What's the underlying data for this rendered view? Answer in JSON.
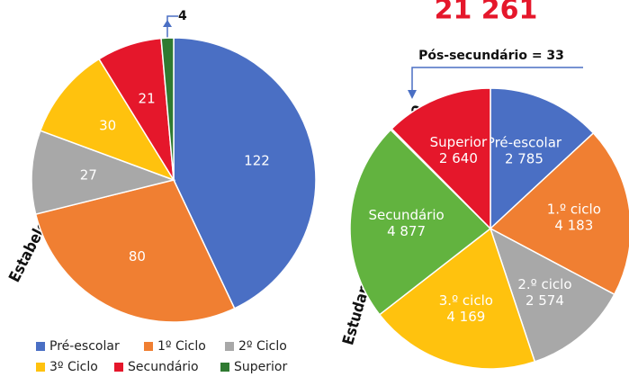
{
  "chart_data": [
    {
      "type": "pie",
      "title": "Estabelecimentos de Ensino",
      "categories": [
        "Pré-escolar",
        "1º Ciclo",
        "2º Ciclo",
        "3º Ciclo",
        "Secundário",
        "Superior"
      ],
      "values": [
        122,
        80,
        27,
        30,
        21,
        4
      ],
      "colors": [
        "#4a6fc4",
        "#f07f32",
        "#a8a8a8",
        "#ffc20e",
        "#e5172b",
        "#2f7a31"
      ],
      "legend": "bottom"
    },
    {
      "type": "pie",
      "title": "Estudantes, Por Nível De Ensino",
      "total_label": "21 261",
      "categories": [
        "Pré-escolar",
        "1.º ciclo",
        "2.º ciclo",
        "3.º ciclo",
        "Secundário",
        null,
        "Superior"
      ],
      "values": [
        2785,
        4183,
        2574,
        4169,
        4877,
        33,
        2640
      ],
      "value_labels": [
        "2 785",
        "4 183",
        "2 574",
        "4 169",
        "4 877",
        "Pós-secundário = 33",
        "2 640"
      ],
      "colors": [
        "#4a6fc4",
        "#f07f32",
        "#a8a8a8",
        "#ffc20e",
        "#62b33f",
        "#2f7a31",
        "#e5172b"
      ]
    }
  ]
}
